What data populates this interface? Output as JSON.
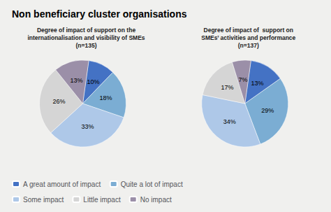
{
  "title": "Non beneficiary cluster organisations",
  "chart_data": [
    {
      "type": "pie",
      "title": "Degree of impact of support on the\ninternationalisation and visibility of SMEs\n(n=135)",
      "categories": [
        "A great amount of impact",
        "Quite a lot of impact",
        "Some impact",
        "Little impact",
        "No impact"
      ],
      "values": [
        10,
        18,
        33,
        26,
        13
      ],
      "value_labels": [
        "10%",
        "18%",
        "33%",
        "26%",
        "13%"
      ],
      "colors": [
        "#4472c4",
        "#7badd3",
        "#aec8e8",
        "#d5d5d5",
        "#9b8fa8"
      ],
      "data_labels": true,
      "legend": "lower left"
    },
    {
      "type": "pie",
      "title": "Degree of impact of  support on\nSMEs’ activities and performance\n(n=137)",
      "categories": [
        "A great amount of impact",
        "Quite a lot of impact",
        "Some impact",
        "Little impact",
        "No impact"
      ],
      "values": [
        13,
        29,
        34,
        17,
        7
      ],
      "value_labels": [
        "13%",
        "29%",
        "34%",
        "17%",
        "7%"
      ],
      "colors": [
        "#4472c4",
        "#7badd3",
        "#aec8e8",
        "#d5d5d5",
        "#9b8fa8"
      ],
      "data_labels": true,
      "legend": "lower left"
    }
  ]
}
